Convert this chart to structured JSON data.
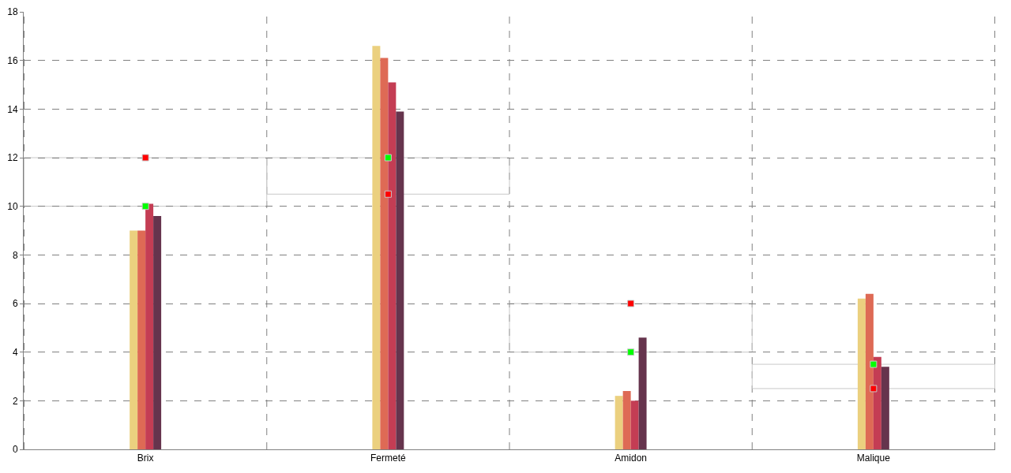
{
  "chart_data": {
    "type": "bar",
    "categories": [
      "Brix",
      "Fermeté",
      "Amidon",
      "Malique"
    ],
    "series": [
      {
        "color": "#ebd07f",
        "values": [
          9.0,
          16.6,
          2.2,
          6.2
        ]
      },
      {
        "color": "#de6a55",
        "values": [
          9.0,
          16.1,
          2.4,
          6.4
        ]
      },
      {
        "color": "#c43d54",
        "values": [
          10.1,
          15.1,
          2.0,
          3.8
        ]
      },
      {
        "color": "#66344d",
        "values": [
          9.6,
          13.9,
          4.6,
          3.4
        ]
      },
      {
        "type": "scatter",
        "marker": "square",
        "color": "#00ff00",
        "x": [
          "Brix",
          "Fermeté",
          "Amidon",
          "Malique"
        ],
        "values": [
          10,
          12,
          4,
          3.5
        ]
      },
      {
        "type": "scatter",
        "marker": "square",
        "color": "#ff0000",
        "x": [
          "Brix",
          "Fermeté",
          "Amidon",
          "Malique"
        ],
        "values": [
          12,
          10.5,
          6,
          2.5
        ]
      }
    ],
    "ylim": [
      0,
      18
    ],
    "yticks": [
      0,
      2,
      4,
      6,
      8,
      10,
      12,
      14,
      16,
      18
    ],
    "grid": true
  }
}
